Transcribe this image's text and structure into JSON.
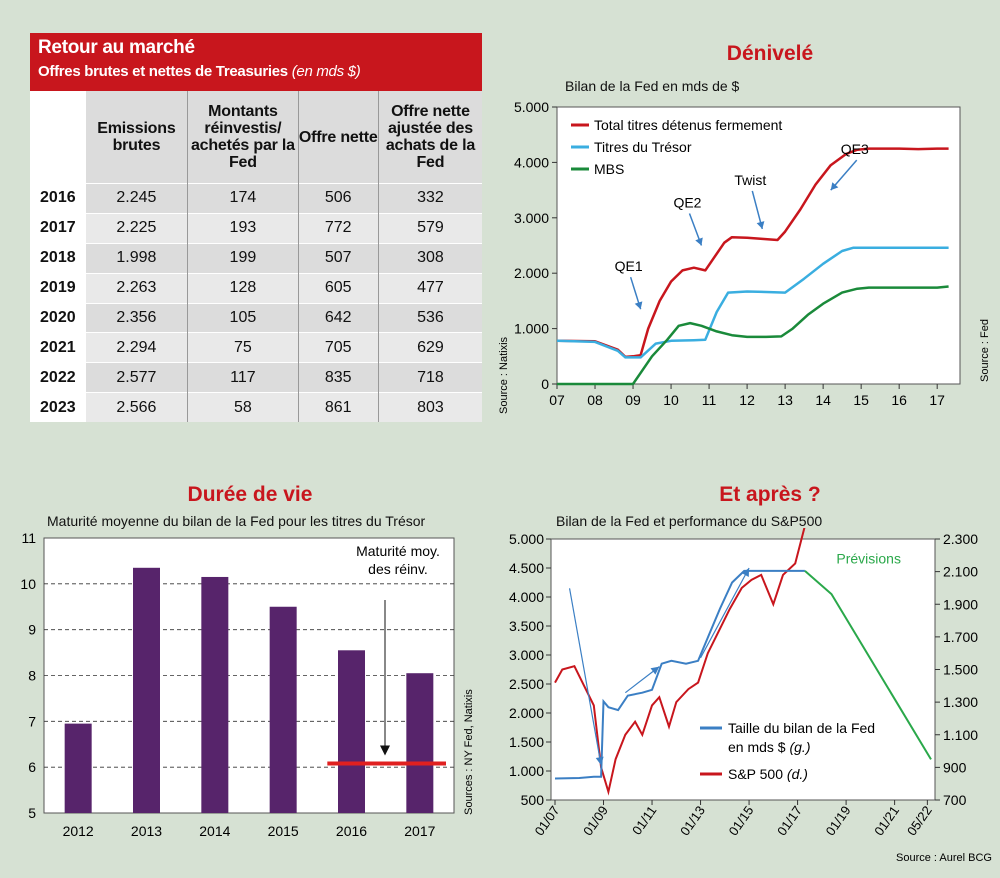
{
  "table": {
    "title": "Retour au marché",
    "subtitle": "Offres brutes et nettes de Treasuries",
    "subtitle_unit": "(en mds $)",
    "headers": [
      "",
      "Emissions brutes",
      "Montants réinvestis/ achetés par la Fed",
      "Offre nette",
      "Offre nette ajustée des achats de la Fed"
    ],
    "rows": [
      [
        "2016",
        "2.245",
        "174",
        "506",
        "332"
      ],
      [
        "2017",
        "2.225",
        "193",
        "772",
        "579"
      ],
      [
        "2018",
        "1.998",
        "199",
        "507",
        "308"
      ],
      [
        "2019",
        "2.263",
        "128",
        "605",
        "477"
      ],
      [
        "2020",
        "2.356",
        "105",
        "642",
        "536"
      ],
      [
        "2021",
        "2.294",
        "75",
        "705",
        "629"
      ],
      [
        "2022",
        "2.577",
        "117",
        "835",
        "718"
      ],
      [
        "2023",
        "2.566",
        "58",
        "861",
        "803"
      ]
    ]
  },
  "chart_data": [
    {
      "id": "denivele",
      "type": "line",
      "title": "Dénivelé",
      "subtitle": "Bilan de la Fed en mds de $",
      "x_ticks": [
        "07",
        "08",
        "09",
        "10",
        "11",
        "12",
        "13",
        "14",
        "15",
        "16",
        "17"
      ],
      "y_ticks": [
        "0",
        "1.000",
        "2.000",
        "3.000",
        "4.000",
        "5.000"
      ],
      "ylim": [
        0,
        5000
      ],
      "xlim": [
        2007,
        2017.6
      ],
      "source_left": "Source : Natixis",
      "source_right": "Source : Fed",
      "legend_position": "top-left",
      "series": [
        {
          "name": "Total titres détenus fermement",
          "color": "#c8161d",
          "x": [
            2007,
            2008,
            2008.6,
            2008.8,
            2009.0,
            2009.2,
            2009.4,
            2009.7,
            2010.0,
            2010.3,
            2010.6,
            2010.9,
            2011.1,
            2011.4,
            2011.6,
            2012.0,
            2012.4,
            2012.8,
            2013.0,
            2013.4,
            2013.8,
            2014.2,
            2014.6,
            2014.9,
            2015.2,
            2016,
            2016.5,
            2017,
            2017.3
          ],
          "y": [
            780,
            770,
            620,
            490,
            500,
            520,
            1000,
            1500,
            1850,
            2050,
            2100,
            2050,
            2250,
            2550,
            2650,
            2640,
            2620,
            2600,
            2750,
            3150,
            3600,
            3950,
            4150,
            4230,
            4250,
            4250,
            4240,
            4250,
            4250
          ]
        },
        {
          "name": "Titres du Trésor",
          "color": "#3aaee0",
          "x": [
            2007,
            2008,
            2008.6,
            2008.8,
            2009.2,
            2009.6,
            2010.0,
            2010.6,
            2010.9,
            2011.2,
            2011.5,
            2012.0,
            2012.5,
            2013.0,
            2013.5,
            2014.0,
            2014.5,
            2014.8,
            2015.0,
            2016,
            2017,
            2017.3
          ],
          "y": [
            780,
            760,
            600,
            480,
            480,
            730,
            780,
            790,
            800,
            1300,
            1650,
            1670,
            1660,
            1650,
            1900,
            2170,
            2400,
            2460,
            2460,
            2460,
            2460,
            2460
          ]
        },
        {
          "name": "MBS",
          "color": "#1a8a3a",
          "x": [
            2007,
            2008.9,
            2009.0,
            2009.2,
            2009.5,
            2009.9,
            2010.2,
            2010.5,
            2010.8,
            2011.2,
            2011.6,
            2012.0,
            2012.5,
            2012.9,
            2013.2,
            2013.6,
            2014.0,
            2014.5,
            2014.9,
            2015.2,
            2016,
            2017,
            2017.3
          ],
          "y": [
            0,
            0,
            0,
            200,
            500,
            800,
            1050,
            1100,
            1050,
            950,
            880,
            850,
            850,
            860,
            1000,
            1250,
            1450,
            1650,
            1720,
            1740,
            1740,
            1740,
            1760
          ]
        }
      ],
      "annotations": [
        {
          "text": "QE1",
          "x": 2009.2,
          "y": 1350
        },
        {
          "text": "QE2",
          "x": 2010.8,
          "y": 2500
        },
        {
          "text": "Twist",
          "x": 2012.4,
          "y": 2800
        },
        {
          "text": "QE3",
          "x": 2014.2,
          "y": 3500
        }
      ]
    },
    {
      "id": "duree",
      "type": "bar",
      "title": "Durée de vie",
      "subtitle": "Maturité moyenne du bilan de la Fed pour les titres du Trésor",
      "categories": [
        "2012",
        "2013",
        "2014",
        "2015",
        "2016",
        "2017"
      ],
      "values": [
        6.95,
        10.35,
        10.15,
        9.5,
        8.55,
        8.05
      ],
      "reference_line": {
        "label": "Maturité moy. des réinv.",
        "value": 6.08,
        "from_category": "2016",
        "color": "#e02020"
      },
      "y_ticks": [
        "5",
        "6",
        "7",
        "8",
        "9",
        "10",
        "11"
      ],
      "ylim": [
        5,
        11
      ],
      "bar_color": "#57246b",
      "source": "Sources : NY Fed, Natixis"
    },
    {
      "id": "etapres",
      "type": "line",
      "title": "Et après ?",
      "subtitle": "Bilan de la Fed et performance du S&P500",
      "x_ticks": [
        "01/07",
        "01/09",
        "01/11",
        "01/13",
        "01/15",
        "01/17",
        "01/19",
        "01/21",
        "05/22"
      ],
      "y_left_ticks": [
        "500",
        "1.000",
        "1.500",
        "2.000",
        "2.500",
        "3.000",
        "3.500",
        "4.000",
        "4.500",
        "5.000"
      ],
      "y_right_ticks": [
        "700",
        "900",
        "1.100",
        "1.300",
        "1.500",
        "1.700",
        "1.900",
        "2.100",
        "2.300"
      ],
      "ylim_left": [
        500,
        5000
      ],
      "ylim_right": [
        700,
        2300
      ],
      "forecast_label": "Prévisions",
      "forecast_color": "#2aa84a",
      "legend_position": "bottom-center",
      "source": "Source : Aurel BCG",
      "series": [
        {
          "name": "Taille du bilan de la Fed",
          "name_suffix": "en mds $",
          "axis_note": "(g.)",
          "color": "#3b7fc4",
          "x": [
            2007,
            2008,
            2008.6,
            2008.9,
            2009.0,
            2009.2,
            2009.6,
            2010.0,
            2010.6,
            2011.0,
            2011.4,
            2011.8,
            2012.4,
            2012.9,
            2013.3,
            2013.8,
            2014.3,
            2014.8,
            2015.2,
            2016,
            2016.8,
            2017.3
          ],
          "y": [
            870,
            880,
            900,
            900,
            2200,
            2100,
            2050,
            2300,
            2350,
            2400,
            2850,
            2900,
            2850,
            2900,
            3300,
            3800,
            4250,
            4450,
            4450,
            4450,
            4450,
            4450
          ]
        },
        {
          "name": "S&P 500",
          "axis_note": "(d.)",
          "color": "#c8161d",
          "x": [
            2007,
            2007.3,
            2007.8,
            2008.2,
            2008.6,
            2008.9,
            2009.2,
            2009.5,
            2009.9,
            2010.3,
            2010.6,
            2011.0,
            2011.3,
            2011.7,
            2012.0,
            2012.5,
            2012.9,
            2013.3,
            2013.8,
            2014.2,
            2014.7,
            2015.1,
            2015.5,
            2016.0,
            2016.4,
            2016.9,
            2017.3
          ],
          "y": [
            1420,
            1500,
            1520,
            1400,
            1280,
            900,
            750,
            950,
            1100,
            1180,
            1100,
            1280,
            1330,
            1150,
            1300,
            1380,
            1420,
            1600,
            1750,
            1870,
            2000,
            2050,
            2080,
            1900,
            2080,
            2150,
            2380
          ]
        },
        {
          "name": "Prévisions",
          "color": "#2aa84a",
          "x": [
            2017.3,
            2018.4,
            2022.5
          ],
          "y": [
            4450,
            4050,
            1200
          ]
        }
      ]
    }
  ]
}
